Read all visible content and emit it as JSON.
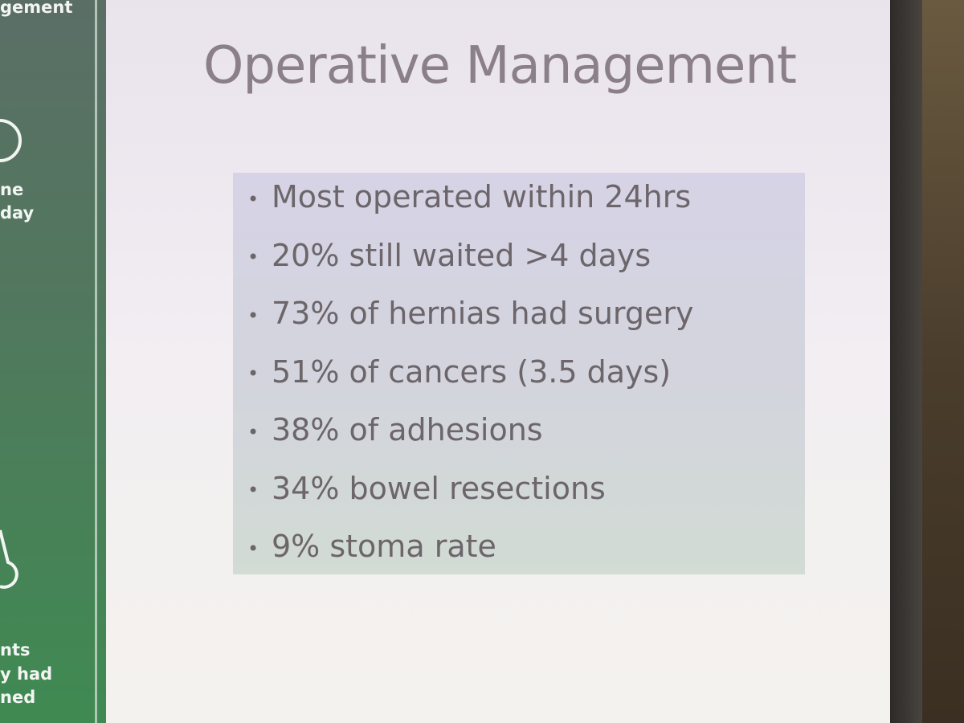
{
  "side_panel": {
    "texts": [
      "gement",
      "ne",
      "day",
      "nts",
      "y had",
      "ned"
    ]
  },
  "slide": {
    "title": "Operative Management",
    "bullets": [
      "Most operated within 24hrs",
      "20% still waited >4 days",
      "73% of hernias had surgery",
      "51% of cancers (3.5 days)",
      "38% of adhesions",
      "34% bowel resections",
      "9% stoma rate"
    ]
  }
}
